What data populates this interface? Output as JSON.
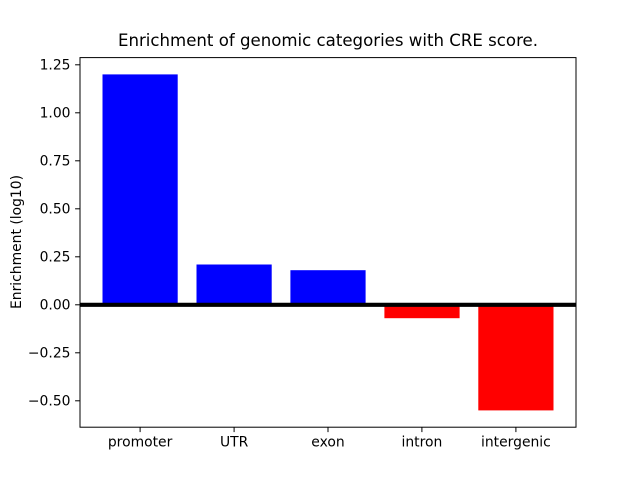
{
  "chart_data": {
    "type": "bar",
    "title": "Enrichment of genomic categories with CRE score.",
    "xlabel": "",
    "ylabel": "Enrichment (log10)",
    "categories": [
      "promoter",
      "UTR",
      "exon",
      "intron",
      "intergenic"
    ],
    "values": [
      1.2,
      0.21,
      0.18,
      -0.07,
      -0.55
    ],
    "bar_colors": [
      "#0000ff",
      "#0000ff",
      "#0000ff",
      "#ff0000",
      "#ff0000"
    ],
    "positive_color": "#0000ff",
    "negative_color": "#ff0000",
    "ylim": [
      -0.6375,
      1.2875
    ],
    "yticks": [
      1.25,
      1.0,
      0.75,
      0.5,
      0.25,
      0.0,
      -0.25,
      -0.5
    ],
    "ytick_labels": [
      "1.25",
      "1.00",
      "0.75",
      "0.50",
      "0.25",
      "0.00",
      "−0.25",
      "−0.50"
    ],
    "bar_width_fraction": 0.8,
    "zero_line": true,
    "grid": false,
    "legend": null,
    "axis_color": "#000000",
    "background_color": "#ffffff"
  }
}
